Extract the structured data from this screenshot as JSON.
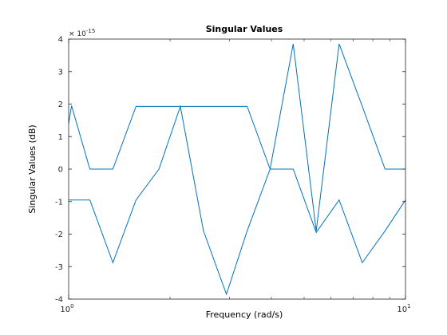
{
  "chart_data": {
    "type": "line",
    "title": "Singular Values",
    "xlabel": "Frequency (rad/s)",
    "ylabel": "Singular Values (dB)",
    "xscale": "log",
    "xlim": [
      1,
      10
    ],
    "ylim": [
      -4,
      4
    ],
    "y_multiplier_label": "× 10",
    "y_multiplier_exponent": "-15",
    "grid": false,
    "x_ticks": [
      {
        "value": 1,
        "base": "10",
        "exp": "0"
      },
      {
        "value": 10,
        "base": "10",
        "exp": "1"
      }
    ],
    "y_ticks": [
      {
        "value": 4,
        "label": "4"
      },
      {
        "value": 3,
        "label": "3"
      },
      {
        "value": 2,
        "label": "2"
      },
      {
        "value": 1,
        "label": "1"
      },
      {
        "value": 0,
        "label": "0"
      },
      {
        "value": -1,
        "label": "-1"
      },
      {
        "value": -2,
        "label": "-2"
      },
      {
        "value": -3,
        "label": "-3"
      },
      {
        "value": -4,
        "label": "-4"
      }
    ],
    "series": [
      {
        "color": "#0072BD",
        "x": [
          1.0,
          1.02,
          1.156,
          1.353,
          1.585,
          2.146,
          2.513,
          3.388,
          3.963,
          4.641,
          5.432,
          6.353,
          7.441,
          8.697,
          10.0
        ],
        "values": [
          1.4,
          1.95,
          0.0,
          0.0,
          1.93,
          1.93,
          1.93,
          1.93,
          0.0,
          0.0,
          -1.95,
          -0.95,
          -2.88,
          -1.9,
          -0.95
        ]
      },
      {
        "color": "#0072BD",
        "x": [
          1.0,
          1.156,
          1.353,
          1.585,
          1.854,
          2.146,
          2.513,
          2.94,
          3.388,
          3.963,
          4.641,
          5.432,
          6.353,
          7.441,
          8.697,
          10.0
        ],
        "values": [
          -0.95,
          -0.95,
          -2.88,
          -0.95,
          0.0,
          1.93,
          -1.9,
          -3.85,
          -1.9,
          0.0,
          3.85,
          -1.9,
          3.85,
          1.93,
          0.0,
          0.0
        ]
      }
    ]
  }
}
